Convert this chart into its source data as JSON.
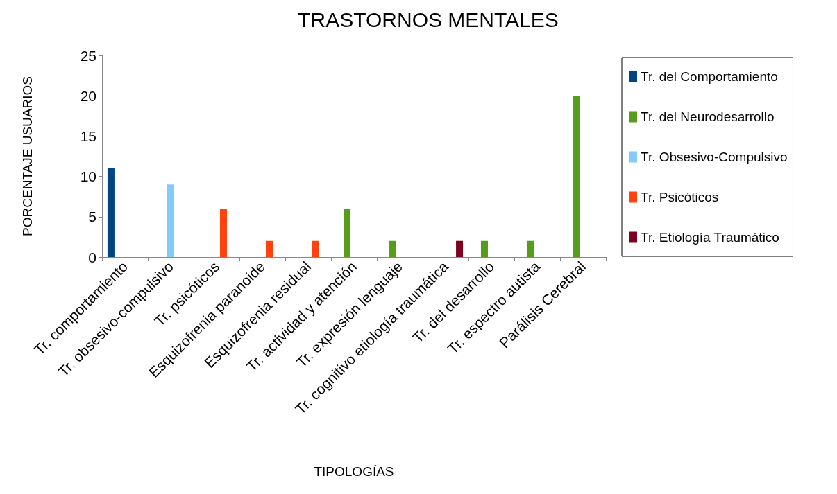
{
  "chart_data": {
    "type": "bar",
    "title": "TRASTORNOS MENTALES",
    "xlabel": "TIPOLOGÍAS",
    "ylabel": "PORCENTAJE USUARIOS",
    "categories": [
      "Tr. comportamiento",
      "Tr. obsesivo-compulsivo",
      "Tr. psicóticos",
      "Esquizofrenia paranoide",
      "Esquizofrenia residual",
      "Tr. actividad y atención",
      "Tr. expresión lenguaje",
      "Tr. cognitivo etiología traumática",
      "Tr. del desarrollo",
      "Tr. espectro autista",
      "Parálisis Cerebral"
    ],
    "series": [
      {
        "name": "Tr. del Comportamiento",
        "color": "#004586",
        "values": [
          11,
          null,
          null,
          null,
          null,
          null,
          null,
          null,
          null,
          null,
          null
        ]
      },
      {
        "name": "Tr. del Neurodesarrollo",
        "color": "#579d1c",
        "values": [
          null,
          null,
          null,
          null,
          null,
          6,
          2,
          null,
          2,
          2,
          20
        ]
      },
      {
        "name": "Tr. Obsesivo-Compulsivo",
        "color": "#83caff",
        "values": [
          null,
          9,
          null,
          null,
          null,
          null,
          null,
          null,
          null,
          null,
          null
        ]
      },
      {
        "name": "Tr. Psicóticos",
        "color": "#ff420e",
        "values": [
          null,
          null,
          6,
          2,
          2,
          null,
          null,
          null,
          null,
          null,
          null
        ]
      },
      {
        "name": "Tr. Etiología Traumático",
        "color": "#7e0021",
        "values": [
          null,
          null,
          null,
          null,
          null,
          null,
          null,
          2,
          null,
          null,
          null
        ]
      }
    ],
    "ylim": [
      0,
      25
    ],
    "yticks": [
      0,
      5,
      10,
      15,
      20,
      25
    ],
    "grid": false,
    "legend": "right"
  }
}
